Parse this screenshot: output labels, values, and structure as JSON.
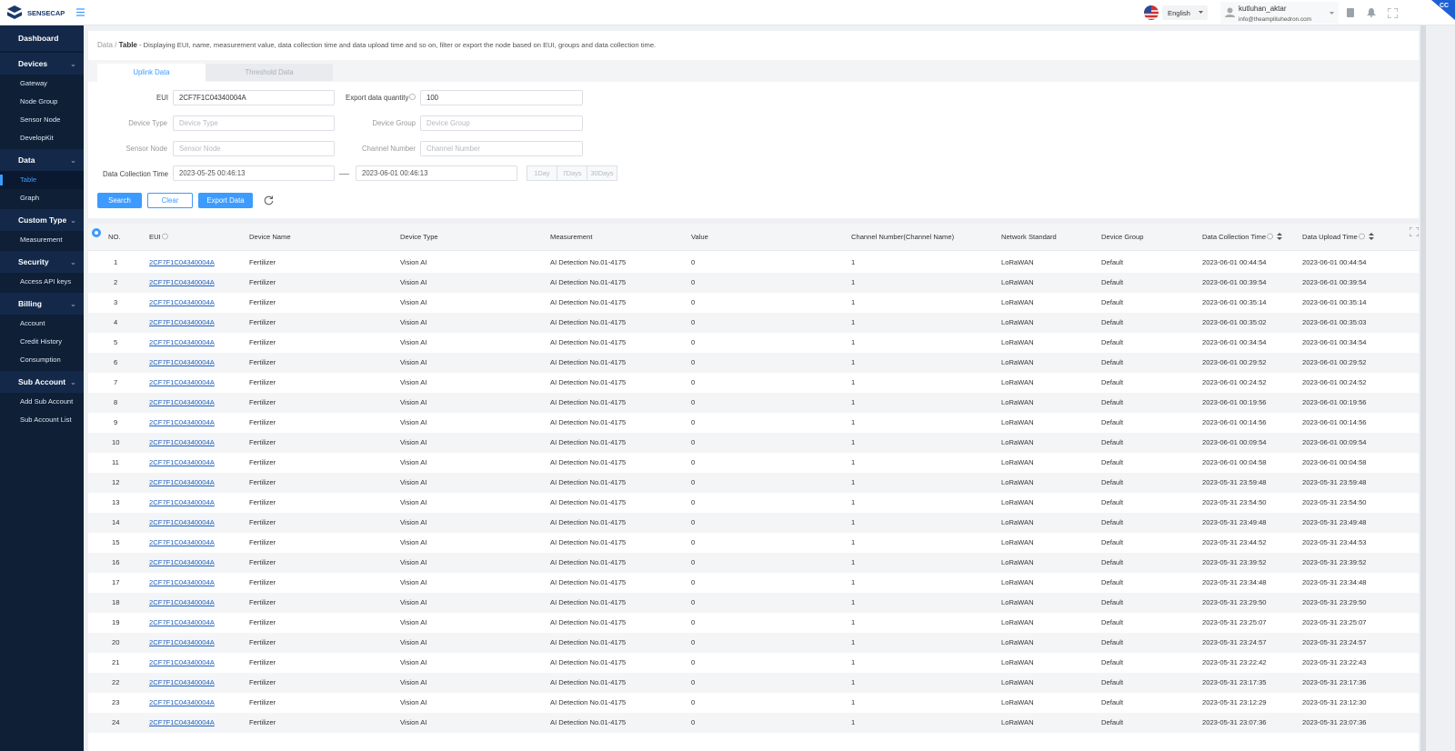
{
  "header": {
    "logo": "SENSECAP",
    "language": "English",
    "user_name": "kutluhan_aktar",
    "user_email": "info@theamplituhedron.com",
    "badge": "CC"
  },
  "sidebar": [
    {
      "label": "Dashboard"
    },
    {
      "label": "Devices",
      "items": [
        "Gateway",
        "Node Group",
        "Sensor Node",
        "DevelopKit"
      ]
    },
    {
      "label": "Data",
      "items": [
        "Table",
        "Graph"
      ]
    },
    {
      "label": "Custom Type",
      "items": [
        "Measurement"
      ]
    },
    {
      "label": "Security",
      "items": [
        "Access API keys"
      ]
    },
    {
      "label": "Billing",
      "items": [
        "Account",
        "Credit History",
        "Consumption"
      ]
    },
    {
      "label": "Sub Account",
      "items": [
        "Add Sub Account",
        "Sub Account List"
      ]
    }
  ],
  "breadcrumb": {
    "parent": "Data /",
    "current": "Table",
    "description": " - Displaying EUI, name, measurement value, data collection time and data upload time and so on, filter or export the node based on EUI, groups and data collection time."
  },
  "tabs": [
    "Uplink Data",
    "Threshold Data"
  ],
  "form": {
    "eui_label": "EUI",
    "eui_value": "2CF7F1C04340004A",
    "export_label": "Export data quantity",
    "export_value": "100",
    "device_type_label": "Device Type",
    "device_type_placeholder": "Device Type",
    "device_group_label": "Device Group",
    "device_group_placeholder": "Device Group",
    "sensor_node_label": "Sensor Node",
    "sensor_node_placeholder": "Sensor Node",
    "channel_label": "Channel Number",
    "channel_placeholder": "Channel Number",
    "time_label": "Data Collection Time",
    "time_start": "2023-05-25 00:46:13",
    "time_end": "2023-06-01 00:46:13",
    "quick_ranges": [
      "1Day",
      "7Days",
      "30Days"
    ]
  },
  "buttons": [
    "Search",
    "Clear",
    "Export Data"
  ],
  "table": {
    "columns": [
      "NO.",
      "EUI",
      "Device Name",
      "Device Type",
      "Measurement",
      "Value",
      "Channel Number(Channel Name)",
      "Network Standard",
      "Device Group",
      "Data Collection Time",
      "Data Upload Time"
    ],
    "rows": [
      [
        1,
        "2CF7F1C04340004A",
        "Fertilizer",
        "Vision AI",
        "AI Detection No.01-4175",
        0,
        1,
        "LoRaWAN",
        "Default",
        "2023-06-01 00:44:54",
        "2023-06-01 00:44:54"
      ],
      [
        2,
        "2CF7F1C04340004A",
        "Fertilizer",
        "Vision AI",
        "AI Detection No.01-4175",
        0,
        1,
        "LoRaWAN",
        "Default",
        "2023-06-01 00:39:54",
        "2023-06-01 00:39:54"
      ],
      [
        3,
        "2CF7F1C04340004A",
        "Fertilizer",
        "Vision AI",
        "AI Detection No.01-4175",
        0,
        1,
        "LoRaWAN",
        "Default",
        "2023-06-01 00:35:14",
        "2023-06-01 00:35:14"
      ],
      [
        4,
        "2CF7F1C04340004A",
        "Fertilizer",
        "Vision AI",
        "AI Detection No.01-4175",
        0,
        1,
        "LoRaWAN",
        "Default",
        "2023-06-01 00:35:02",
        "2023-06-01 00:35:03"
      ],
      [
        5,
        "2CF7F1C04340004A",
        "Fertilizer",
        "Vision AI",
        "AI Detection No.01-4175",
        0,
        1,
        "LoRaWAN",
        "Default",
        "2023-06-01 00:34:54",
        "2023-06-01 00:34:54"
      ],
      [
        6,
        "2CF7F1C04340004A",
        "Fertilizer",
        "Vision AI",
        "AI Detection No.01-4175",
        0,
        1,
        "LoRaWAN",
        "Default",
        "2023-06-01 00:29:52",
        "2023-06-01 00:29:52"
      ],
      [
        7,
        "2CF7F1C04340004A",
        "Fertilizer",
        "Vision AI",
        "AI Detection No.01-4175",
        0,
        1,
        "LoRaWAN",
        "Default",
        "2023-06-01 00:24:52",
        "2023-06-01 00:24:52"
      ],
      [
        8,
        "2CF7F1C04340004A",
        "Fertilizer",
        "Vision AI",
        "AI Detection No.01-4175",
        0,
        1,
        "LoRaWAN",
        "Default",
        "2023-06-01 00:19:56",
        "2023-06-01 00:19:56"
      ],
      [
        9,
        "2CF7F1C04340004A",
        "Fertilizer",
        "Vision AI",
        "AI Detection No.01-4175",
        0,
        1,
        "LoRaWAN",
        "Default",
        "2023-06-01 00:14:56",
        "2023-06-01 00:14:56"
      ],
      [
        10,
        "2CF7F1C04340004A",
        "Fertilizer",
        "Vision AI",
        "AI Detection No.01-4175",
        0,
        1,
        "LoRaWAN",
        "Default",
        "2023-06-01 00:09:54",
        "2023-06-01 00:09:54"
      ],
      [
        11,
        "2CF7F1C04340004A",
        "Fertilizer",
        "Vision AI",
        "AI Detection No.01-4175",
        0,
        1,
        "LoRaWAN",
        "Default",
        "2023-06-01 00:04:58",
        "2023-06-01 00:04:58"
      ],
      [
        12,
        "2CF7F1C04340004A",
        "Fertilizer",
        "Vision AI",
        "AI Detection No.01-4175",
        0,
        1,
        "LoRaWAN",
        "Default",
        "2023-05-31 23:59:48",
        "2023-05-31 23:59:48"
      ],
      [
        13,
        "2CF7F1C04340004A",
        "Fertilizer",
        "Vision AI",
        "AI Detection No.01-4175",
        0,
        1,
        "LoRaWAN",
        "Default",
        "2023-05-31 23:54:50",
        "2023-05-31 23:54:50"
      ],
      [
        14,
        "2CF7F1C04340004A",
        "Fertilizer",
        "Vision AI",
        "AI Detection No.01-4175",
        0,
        1,
        "LoRaWAN",
        "Default",
        "2023-05-31 23:49:48",
        "2023-05-31 23:49:48"
      ],
      [
        15,
        "2CF7F1C04340004A",
        "Fertilizer",
        "Vision AI",
        "AI Detection No.01-4175",
        0,
        1,
        "LoRaWAN",
        "Default",
        "2023-05-31 23:44:52",
        "2023-05-31 23:44:53"
      ],
      [
        16,
        "2CF7F1C04340004A",
        "Fertilizer",
        "Vision AI",
        "AI Detection No.01-4175",
        0,
        1,
        "LoRaWAN",
        "Default",
        "2023-05-31 23:39:52",
        "2023-05-31 23:39:52"
      ],
      [
        17,
        "2CF7F1C04340004A",
        "Fertilizer",
        "Vision AI",
        "AI Detection No.01-4175",
        0,
        1,
        "LoRaWAN",
        "Default",
        "2023-05-31 23:34:48",
        "2023-05-31 23:34:48"
      ],
      [
        18,
        "2CF7F1C04340004A",
        "Fertilizer",
        "Vision AI",
        "AI Detection No.01-4175",
        0,
        1,
        "LoRaWAN",
        "Default",
        "2023-05-31 23:29:50",
        "2023-05-31 23:29:50"
      ],
      [
        19,
        "2CF7F1C04340004A",
        "Fertilizer",
        "Vision AI",
        "AI Detection No.01-4175",
        0,
        1,
        "LoRaWAN",
        "Default",
        "2023-05-31 23:25:07",
        "2023-05-31 23:25:07"
      ],
      [
        20,
        "2CF7F1C04340004A",
        "Fertilizer",
        "Vision AI",
        "AI Detection No.01-4175",
        0,
        1,
        "LoRaWAN",
        "Default",
        "2023-05-31 23:24:57",
        "2023-05-31 23:24:57"
      ],
      [
        21,
        "2CF7F1C04340004A",
        "Fertilizer",
        "Vision AI",
        "AI Detection No.01-4175",
        0,
        1,
        "LoRaWAN",
        "Default",
        "2023-05-31 23:22:42",
        "2023-05-31 23:22:43"
      ],
      [
        22,
        "2CF7F1C04340004A",
        "Fertilizer",
        "Vision AI",
        "AI Detection No.01-4175",
        0,
        1,
        "LoRaWAN",
        "Default",
        "2023-05-31 23:17:35",
        "2023-05-31 23:17:36"
      ],
      [
        23,
        "2CF7F1C04340004A",
        "Fertilizer",
        "Vision AI",
        "AI Detection No.01-4175",
        0,
        1,
        "LoRaWAN",
        "Default",
        "2023-05-31 23:12:29",
        "2023-05-31 23:12:30"
      ],
      [
        24,
        "2CF7F1C04340004A",
        "Fertilizer",
        "Vision AI",
        "AI Detection No.01-4175",
        0,
        1,
        "LoRaWAN",
        "Default",
        "2023-05-31 23:07:36",
        "2023-05-31 23:07:36"
      ]
    ]
  }
}
